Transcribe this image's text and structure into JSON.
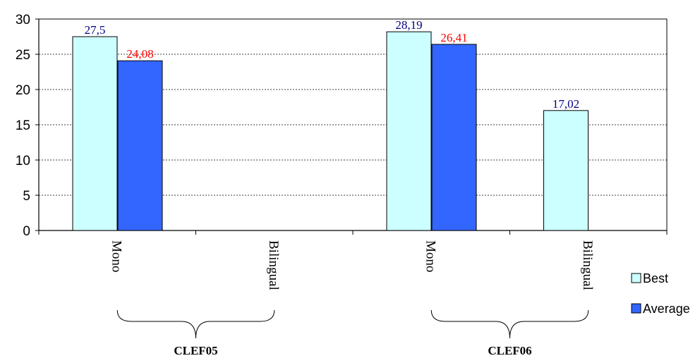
{
  "chart_data": {
    "type": "bar",
    "categories": [
      "Mono",
      "Bilingual",
      "Mono",
      "Bilingual"
    ],
    "groups": [
      {
        "label": "CLEF05",
        "categories": [
          0,
          1
        ]
      },
      {
        "label": "CLEF06",
        "categories": [
          2,
          3
        ]
      }
    ],
    "series": [
      {
        "name": "Best",
        "values": [
          27.5,
          null,
          28.19,
          17.02
        ],
        "labels": [
          "27,5",
          null,
          "28,19",
          "17,02"
        ],
        "color": "#ccffff",
        "label_color": "#000080"
      },
      {
        "name": "Average",
        "values": [
          24.08,
          null,
          26.41,
          null
        ],
        "labels": [
          "24,08",
          null,
          "26,41",
          null
        ],
        "color": "#3366ff",
        "label_color": "#ff0000"
      }
    ],
    "ylim": [
      0,
      30
    ],
    "yticks": [
      0,
      5,
      10,
      15,
      20,
      25,
      30
    ],
    "grid": true,
    "legend": "right",
    "title": "",
    "xlabel": "",
    "ylabel": ""
  }
}
